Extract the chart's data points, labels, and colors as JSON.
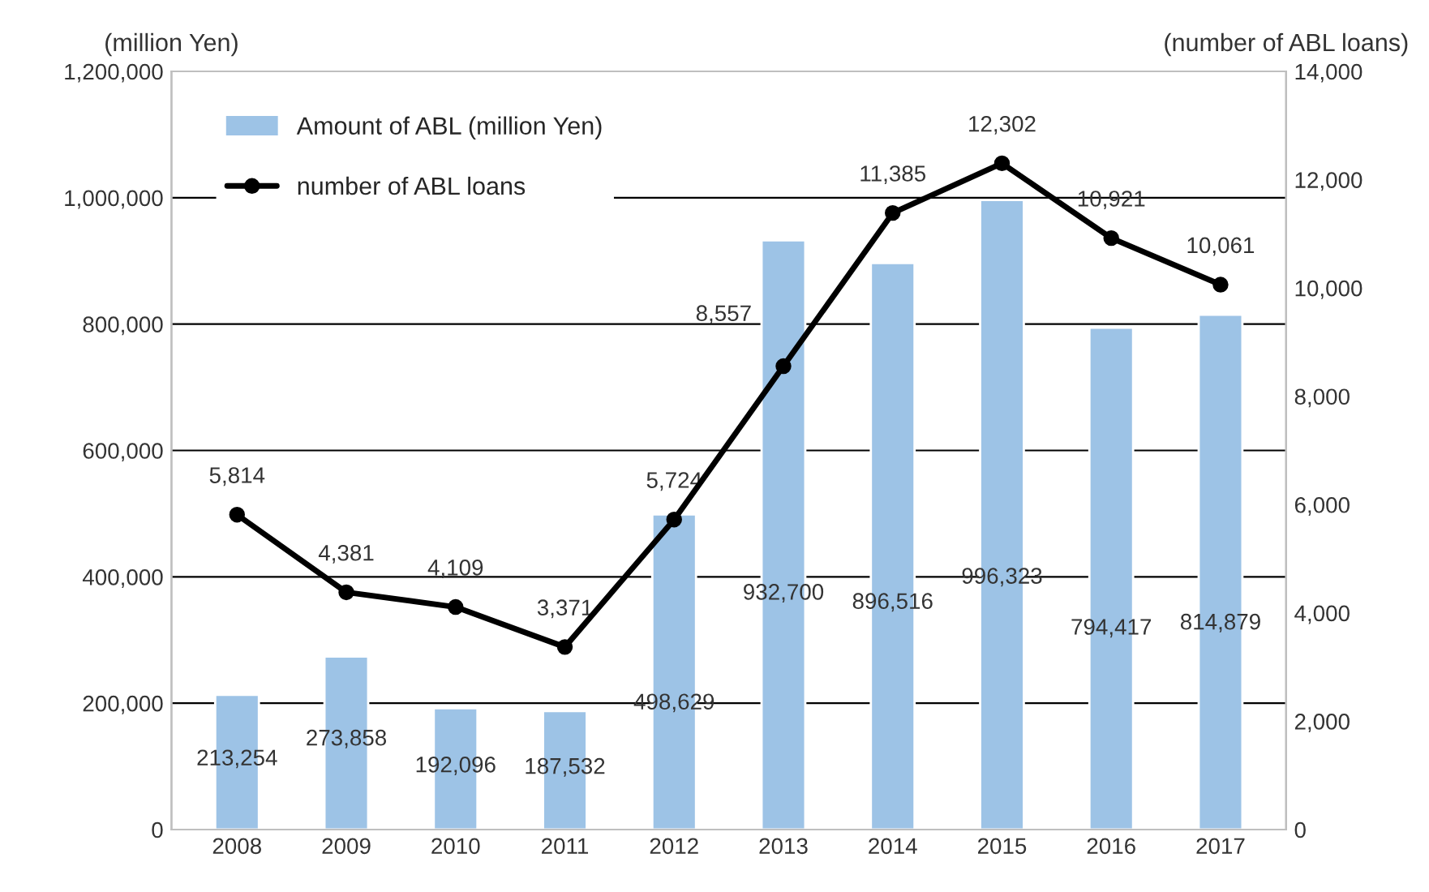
{
  "chart_data": {
    "type": "bar",
    "ylabel": "(million Yen)",
    "y2label": "(number of ABL loans)",
    "categories": [
      "2008",
      "2009",
      "2010",
      "2011",
      "2012",
      "2013",
      "2014",
      "2015",
      "2016",
      "2017"
    ],
    "series": [
      {
        "name": "Amount of ABL (million Yen)",
        "color": "#9dc3e6",
        "values": [
          213254,
          273858,
          192096,
          187532,
          498629,
          932700,
          896516,
          996323,
          794417,
          814879
        ],
        "value_labels": [
          "213,254",
          "273,858",
          "192,096",
          "187,532",
          "498,629",
          "932,700",
          "896,516",
          "996,323",
          "794,417",
          "814,879"
        ]
      },
      {
        "name": "number of ABL loans",
        "type": "line",
        "axis": "y2",
        "color": "#000000",
        "marker": "circle",
        "values": [
          5814,
          4381,
          4109,
          3371,
          5724,
          8557,
          11385,
          12302,
          10921,
          10061
        ],
        "value_labels": [
          "5,814",
          "4,381",
          "4,109",
          "3,371",
          "5,724",
          "8,557",
          "11,385",
          "12,302",
          "10,921",
          "10,061"
        ]
      }
    ],
    "ylim": [
      0,
      1200000
    ],
    "yticks": [
      {
        "value": 0,
        "label": "0"
      },
      {
        "value": 200000,
        "label": "200,000"
      },
      {
        "value": 400000,
        "label": "400,000"
      },
      {
        "value": 600000,
        "label": "600,000"
      },
      {
        "value": 800000,
        "label": "800,000"
      },
      {
        "value": 1000000,
        "label": "1,000,000"
      },
      {
        "value": 1200000,
        "label": "1,200,000"
      }
    ],
    "y2lim": [
      0,
      14000
    ],
    "y2ticks": [
      {
        "value": 0,
        "label": "0"
      },
      {
        "value": 2000,
        "label": "2,000"
      },
      {
        "value": 4000,
        "label": "4,000"
      },
      {
        "value": 6000,
        "label": "6,000"
      },
      {
        "value": 8000,
        "label": "8,000"
      },
      {
        "value": 10000,
        "label": "10,000"
      },
      {
        "value": 12000,
        "label": "12,000"
      },
      {
        "value": 14000,
        "label": "14,000"
      }
    ],
    "grid": "y",
    "legend": "top left"
  }
}
